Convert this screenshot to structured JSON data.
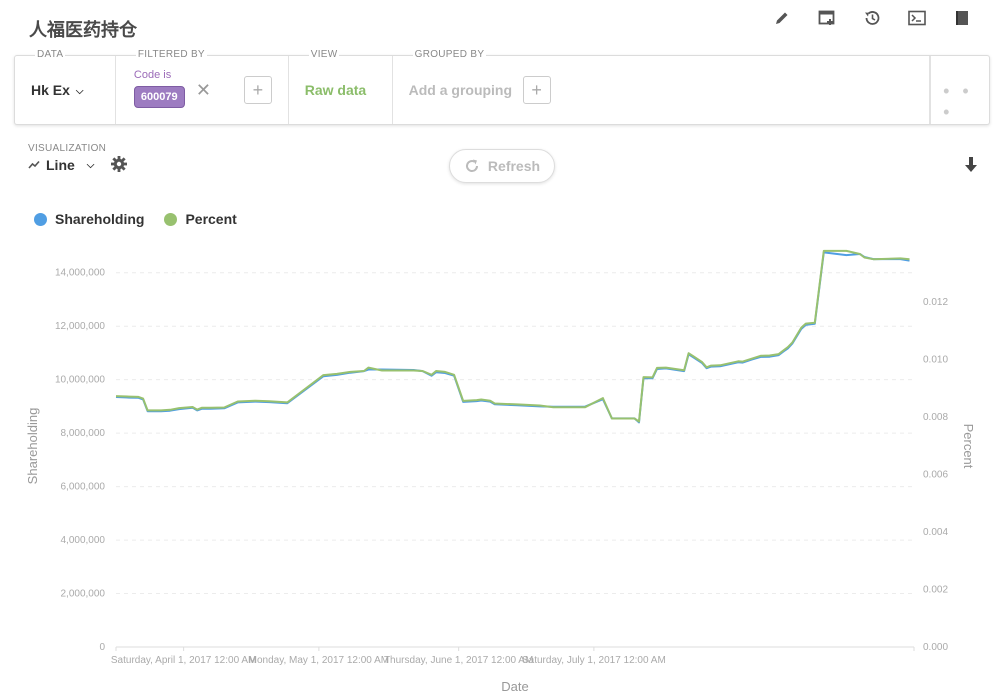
{
  "header": {
    "title": "人福医药持仓"
  },
  "toolbar": {
    "icons": [
      "pencil-icon",
      "add-to-dashboard-icon",
      "history-icon",
      "terminal-icon",
      "book-icon"
    ]
  },
  "query": {
    "data_label": "DATA",
    "data_value": "Hk Ex",
    "filter_label": "FILTERED BY",
    "filter_field": "Code is",
    "filter_value": "600079",
    "view_label": "VIEW",
    "view_value": "Raw data",
    "group_label": "GROUPED BY",
    "group_placeholder": "Add a grouping",
    "more": "• • •"
  },
  "visualization": {
    "label": "VISUALIZATION",
    "value": "Line",
    "refresh_label": "Refresh"
  },
  "colors": {
    "shareholding": "#509ee3",
    "percent": "#98c16f",
    "filter_chip": "#9d7cc1"
  },
  "chart_data": {
    "type": "line",
    "xlabel": "Date",
    "ylabel_left": "Shareholding",
    "ylabel_right": "Percent",
    "x_ticks": [
      "Saturday, April 1, 2017 12:00 AM",
      "Monday, May 1, 2017 12:00 AM",
      "Thursday, June 1, 2017 12:00 AM",
      "Saturday, July 1, 2017 12:00 AM"
    ],
    "y_left_ticks": [
      "0",
      "2,000,000",
      "4,000,000",
      "6,000,000",
      "8,000,000",
      "10,000,000",
      "12,000,000",
      "14,000,000"
    ],
    "y_right_ticks": [
      "0.000",
      "0.002",
      "0.004",
      "0.006",
      "0.008",
      "0.010",
      "0.012"
    ],
    "ylim_left": [
      0,
      15000000
    ],
    "ylim_right": [
      0,
      0.01395
    ],
    "grid": true,
    "legend_position": "top-left",
    "series": [
      {
        "name": "Shareholding",
        "axis": "left",
        "values": [
          [
            "2017-03-17",
            9350000
          ],
          [
            "2017-03-20",
            9330000
          ],
          [
            "2017-03-22",
            9320000
          ],
          [
            "2017-03-23",
            9260000
          ],
          [
            "2017-03-24",
            8820000
          ],
          [
            "2017-03-27",
            8820000
          ],
          [
            "2017-03-29",
            8840000
          ],
          [
            "2017-03-31",
            8900000
          ],
          [
            "2017-04-03",
            8950000
          ],
          [
            "2017-04-04",
            8850000
          ],
          [
            "2017-04-05",
            8910000
          ],
          [
            "2017-04-07",
            8910000
          ],
          [
            "2017-04-10",
            8930000
          ],
          [
            "2017-04-13",
            9150000
          ],
          [
            "2017-04-17",
            9180000
          ],
          [
            "2017-04-20",
            9160000
          ],
          [
            "2017-04-24",
            9120000
          ],
          [
            "2017-05-02",
            10130000
          ],
          [
            "2017-05-05",
            10180000
          ],
          [
            "2017-05-08",
            10260000
          ],
          [
            "2017-05-11",
            10320000
          ],
          [
            "2017-05-12",
            10380000
          ],
          [
            "2017-05-15",
            10380000
          ],
          [
            "2017-05-22",
            10360000
          ],
          [
            "2017-05-24",
            10320000
          ],
          [
            "2017-05-26",
            10150000
          ],
          [
            "2017-05-27",
            10280000
          ],
          [
            "2017-05-29",
            10250000
          ],
          [
            "2017-05-31",
            10150000
          ],
          [
            "2017-06-02",
            9170000
          ],
          [
            "2017-06-05",
            9200000
          ],
          [
            "2017-06-06",
            9220000
          ],
          [
            "2017-06-08",
            9180000
          ],
          [
            "2017-06-09",
            9080000
          ],
          [
            "2017-06-14",
            9040000
          ],
          [
            "2017-06-19",
            9000000
          ],
          [
            "2017-06-22",
            8990000
          ],
          [
            "2017-06-29",
            8990000
          ],
          [
            "2017-07-03",
            9270000
          ],
          [
            "2017-07-05",
            8550000
          ],
          [
            "2017-07-10",
            8550000
          ],
          [
            "2017-07-11",
            8400000
          ],
          [
            "2017-07-12",
            10060000
          ],
          [
            "2017-07-14",
            10050000
          ],
          [
            "2017-07-15",
            10400000
          ],
          [
            "2017-07-17",
            10420000
          ],
          [
            "2017-07-21",
            10320000
          ],
          [
            "2017-07-22",
            10950000
          ],
          [
            "2017-07-23",
            10840000
          ],
          [
            "2017-07-25",
            10620000
          ],
          [
            "2017-07-26",
            10430000
          ],
          [
            "2017-07-27",
            10490000
          ],
          [
            "2017-07-29",
            10500000
          ],
          [
            "2017-08-02",
            10650000
          ],
          [
            "2017-08-03",
            10640000
          ],
          [
            "2017-08-05",
            10750000
          ],
          [
            "2017-08-07",
            10850000
          ],
          [
            "2017-08-09",
            10860000
          ],
          [
            "2017-08-11",
            10920000
          ],
          [
            "2017-08-12",
            11050000
          ],
          [
            "2017-08-13",
            11170000
          ],
          [
            "2017-08-14",
            11350000
          ],
          [
            "2017-08-16",
            11900000
          ],
          [
            "2017-08-17",
            12050000
          ],
          [
            "2017-08-19",
            12090000
          ],
          [
            "2017-08-21",
            14760000
          ],
          [
            "2017-08-26",
            14660000
          ],
          [
            "2017-08-29",
            14700000
          ],
          [
            "2017-08-30",
            14590000
          ],
          [
            "2017-09-01",
            14510000
          ],
          [
            "2017-09-07",
            14510000
          ],
          [
            "2017-09-09",
            14450000
          ]
        ]
      },
      {
        "name": "Percent",
        "axis": "right",
        "values": [
          [
            "2017-03-17",
            0.00873
          ],
          [
            "2017-03-20",
            0.00871
          ],
          [
            "2017-03-22",
            0.0087
          ],
          [
            "2017-03-23",
            0.00864
          ],
          [
            "2017-03-24",
            0.00823
          ],
          [
            "2017-03-27",
            0.00823
          ],
          [
            "2017-03-29",
            0.00825
          ],
          [
            "2017-03-31",
            0.00831
          ],
          [
            "2017-04-03",
            0.00835
          ],
          [
            "2017-04-04",
            0.00826
          ],
          [
            "2017-04-05",
            0.00832
          ],
          [
            "2017-04-07",
            0.00832
          ],
          [
            "2017-04-10",
            0.00833
          ],
          [
            "2017-04-13",
            0.00854
          ],
          [
            "2017-04-17",
            0.00857
          ],
          [
            "2017-04-20",
            0.00855
          ],
          [
            "2017-04-24",
            0.00851
          ],
          [
            "2017-05-02",
            0.00946
          ],
          [
            "2017-05-05",
            0.0095
          ],
          [
            "2017-05-08",
            0.00957
          ],
          [
            "2017-05-11",
            0.0096
          ],
          [
            "2017-05-12",
            0.00972
          ],
          [
            "2017-05-15",
            0.00962
          ],
          [
            "2017-05-22",
            0.00962
          ],
          [
            "2017-05-24",
            0.0096
          ],
          [
            "2017-05-26",
            0.00947
          ],
          [
            "2017-05-27",
            0.0096
          ],
          [
            "2017-05-29",
            0.00957
          ],
          [
            "2017-05-31",
            0.00947
          ],
          [
            "2017-06-02",
            0.00856
          ],
          [
            "2017-06-05",
            0.00859
          ],
          [
            "2017-06-06",
            0.00861
          ],
          [
            "2017-06-08",
            0.00857
          ],
          [
            "2017-06-09",
            0.00847
          ],
          [
            "2017-06-14",
            0.00844
          ],
          [
            "2017-06-19",
            0.0084
          ],
          [
            "2017-06-22",
            0.00834
          ],
          [
            "2017-06-29",
            0.00834
          ],
          [
            "2017-07-03",
            0.00866
          ],
          [
            "2017-07-05",
            0.00795
          ],
          [
            "2017-07-10",
            0.00795
          ],
          [
            "2017-07-11",
            0.00784
          ],
          [
            "2017-07-12",
            0.00939
          ],
          [
            "2017-07-14",
            0.00938
          ],
          [
            "2017-07-15",
            0.00971
          ],
          [
            "2017-07-17",
            0.00972
          ],
          [
            "2017-07-21",
            0.00963
          ],
          [
            "2017-07-22",
            0.01022
          ],
          [
            "2017-07-23",
            0.01012
          ],
          [
            "2017-07-25",
            0.00991
          ],
          [
            "2017-07-26",
            0.00973
          ],
          [
            "2017-07-27",
            0.00979
          ],
          [
            "2017-07-29",
            0.0098
          ],
          [
            "2017-08-02",
            0.00994
          ],
          [
            "2017-08-03",
            0.00993
          ],
          [
            "2017-08-05",
            0.01003
          ],
          [
            "2017-08-07",
            0.01013
          ],
          [
            "2017-08-09",
            0.01014
          ],
          [
            "2017-08-11",
            0.01019
          ],
          [
            "2017-08-12",
            0.01031
          ],
          [
            "2017-08-13",
            0.01043
          ],
          [
            "2017-08-14",
            0.01059
          ],
          [
            "2017-08-16",
            0.01111
          ],
          [
            "2017-08-17",
            0.01125
          ],
          [
            "2017-08-19",
            0.01128
          ],
          [
            "2017-08-21",
            0.01378
          ],
          [
            "2017-08-26",
            0.01378
          ],
          [
            "2017-08-29",
            0.01367
          ],
          [
            "2017-08-30",
            0.01355
          ],
          [
            "2017-09-01",
            0.01349
          ],
          [
            "2017-09-07",
            0.01352
          ],
          [
            "2017-09-09",
            0.01349
          ]
        ]
      }
    ]
  }
}
